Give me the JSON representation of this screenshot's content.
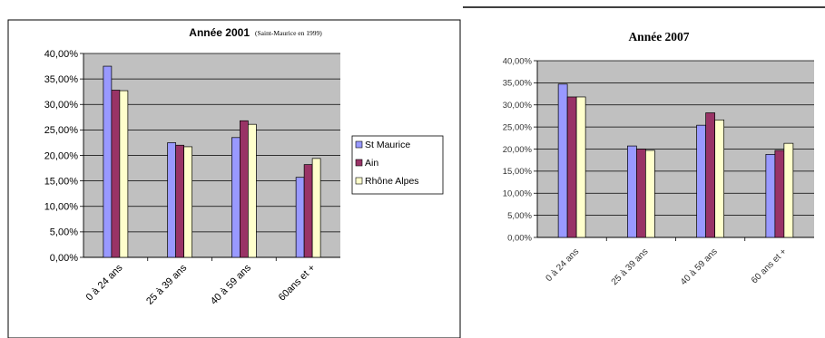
{
  "chart_data": [
    {
      "type": "bar",
      "title": "Année 2001",
      "subtitle": "(Saint-Maurice en 1999)",
      "categories": [
        "0 à 24 ans",
        "25 à 39 ans",
        "40 à 59 ans",
        "60ans et +"
      ],
      "series": [
        {
          "name": "St Maurice",
          "values": [
            0.375,
            0.225,
            0.235,
            0.157
          ],
          "color": "#9999ff"
        },
        {
          "name": "Ain",
          "values": [
            0.328,
            0.22,
            0.268,
            0.182
          ],
          "color": "#993366"
        },
        {
          "name": "Rhône Alpes",
          "values": [
            0.327,
            0.217,
            0.261,
            0.194
          ],
          "color": "#ffffcc"
        }
      ],
      "yticks": [
        "0,00%",
        "5,00%",
        "10,00%",
        "15,00%",
        "20,00%",
        "25,00%",
        "30,00%",
        "35,00%",
        "40,00%"
      ],
      "ylim": [
        0,
        0.4
      ],
      "grid": true,
      "legend": "right",
      "plot_background": "#c0c0c0"
    },
    {
      "type": "bar",
      "title": "Année 2007",
      "categories": [
        "0 à 24 ans",
        "25 à 39 ans",
        "40 à 59 ans",
        "60 ans et +"
      ],
      "series": [
        {
          "values": [
            0.347,
            0.207,
            0.254,
            0.188
          ],
          "color": "#9999ff"
        },
        {
          "values": [
            0.318,
            0.2,
            0.282,
            0.197
          ],
          "color": "#993366"
        },
        {
          "values": [
            0.318,
            0.197,
            0.266,
            0.213
          ],
          "color": "#ffffcc"
        }
      ],
      "yticks": [
        "0,00%",
        "5,00%",
        "10,00%",
        "15,00%",
        "20,00%",
        "25,00%",
        "30,00%",
        "35,00%",
        "40,00%"
      ],
      "ylim": [
        0,
        0.4
      ],
      "grid": true,
      "plot_background": "#c0c0c0"
    }
  ]
}
